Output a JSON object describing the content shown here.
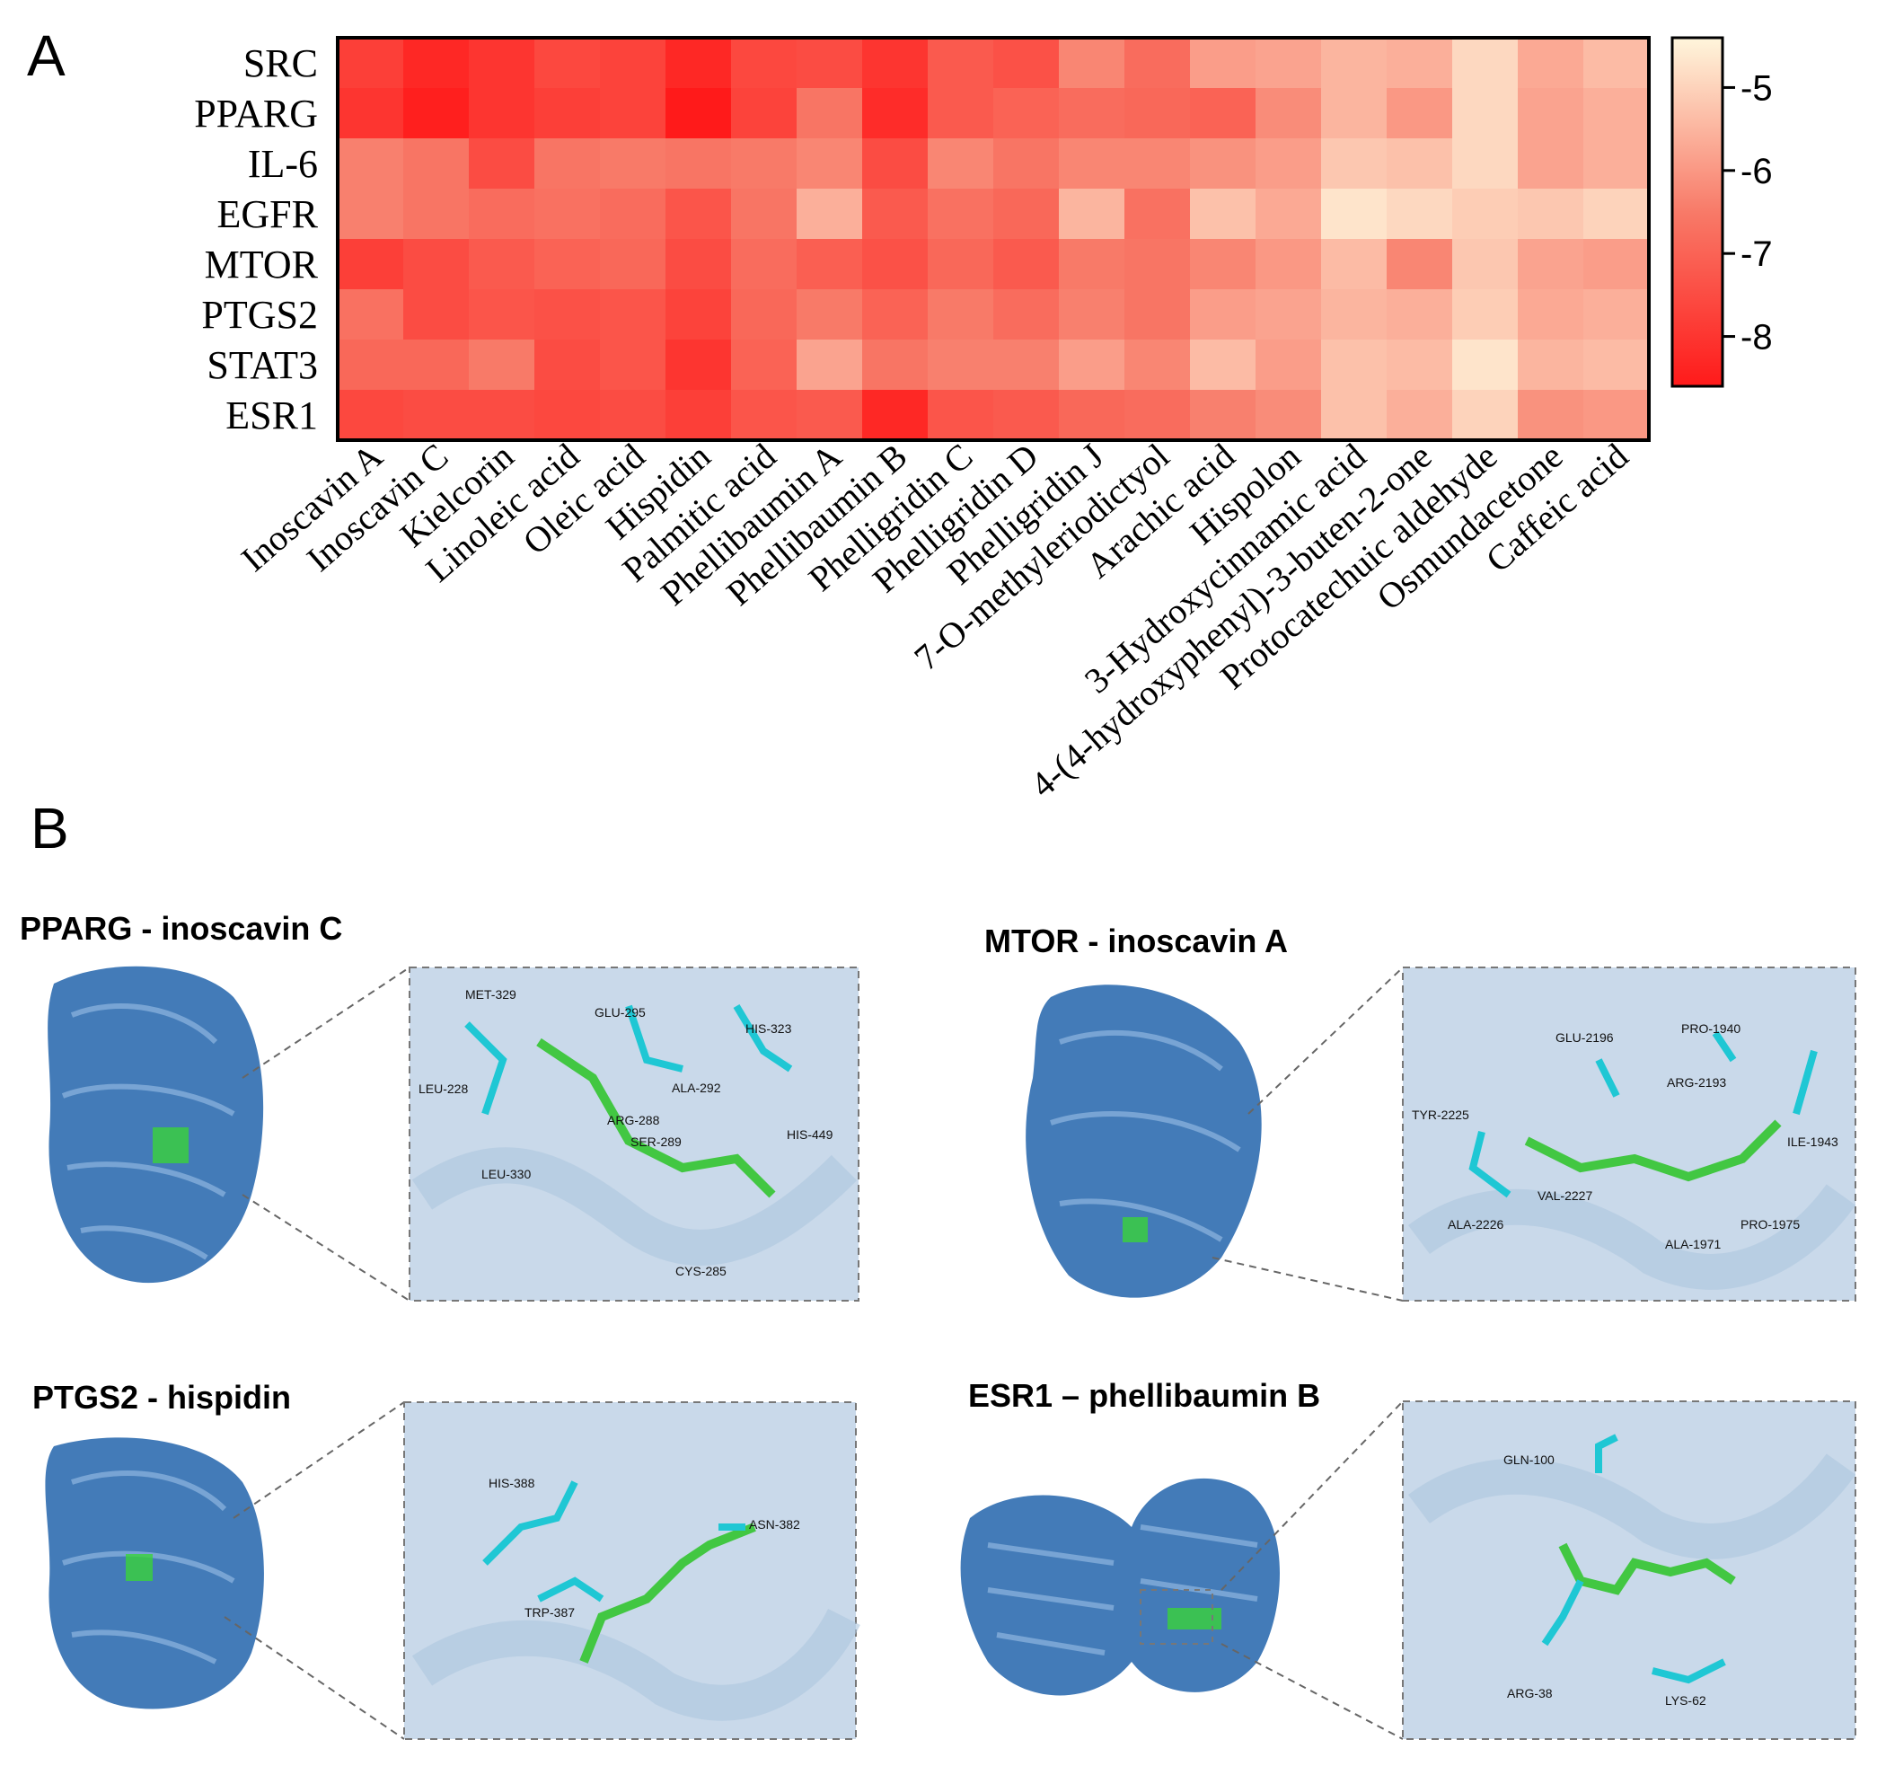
{
  "panels": {
    "a": "A",
    "b": "B"
  },
  "chart_data": {
    "type": "heatmap",
    "title": "",
    "rows": [
      "SRC",
      "PPARG",
      "IL-6",
      "EGFR",
      "MTOR",
      "PTGS2",
      "STAT3",
      "ESR1"
    ],
    "columns": [
      "Inoscavin A",
      "Inoscavin C",
      "Kielcorin",
      "Linoleic acid",
      "Oleic acid",
      "Hispidin",
      "Palmitic acid",
      "Phellibaumin A",
      "Phellibaumin B",
      "Phelligridin C",
      "Phelligridin D",
      "Phelligridin J",
      "7-O-methyleriodictyol",
      "Arachic acid",
      "Hispolon",
      "3-Hydroxycinnamic acid",
      "4-(4-hydroxyphenyl)-3-buten-2-one",
      "Protocatechuic aldehyde",
      "Osmundacetone",
      "Caffeic acid"
    ],
    "values": [
      [
        -7.8,
        -8.3,
        -8.0,
        -7.6,
        -7.7,
        -8.3,
        -7.6,
        -7.5,
        -8.0,
        -7.2,
        -7.4,
        -6.3,
        -6.8,
        -5.9,
        -5.8,
        -5.5,
        -5.6,
        -4.9,
        -5.7,
        -5.4
      ],
      [
        -8.0,
        -8.5,
        -8.0,
        -7.8,
        -7.7,
        -8.6,
        -7.7,
        -6.6,
        -8.2,
        -7.2,
        -7.0,
        -6.8,
        -6.9,
        -7.0,
        -6.2,
        -5.5,
        -6.0,
        -4.9,
        -5.8,
        -5.6
      ],
      [
        -6.4,
        -6.6,
        -7.5,
        -6.6,
        -6.5,
        -6.6,
        -6.5,
        -6.3,
        -7.5,
        -6.3,
        -6.6,
        -6.3,
        -6.3,
        -6.1,
        -5.9,
        -5.2,
        -5.3,
        -4.9,
        -5.8,
        -5.6
      ],
      [
        -6.4,
        -6.6,
        -6.8,
        -6.7,
        -6.8,
        -7.3,
        -6.6,
        -5.6,
        -7.2,
        -6.7,
        -6.9,
        -5.5,
        -6.7,
        -5.3,
        -5.7,
        -4.7,
        -4.9,
        -5.1,
        -5.2,
        -5.0
      ],
      [
        -7.8,
        -7.5,
        -7.2,
        -7.0,
        -6.9,
        -7.5,
        -6.8,
        -7.1,
        -7.4,
        -6.9,
        -7.2,
        -6.5,
        -6.6,
        -6.3,
        -6.0,
        -5.4,
        -6.3,
        -5.2,
        -5.8,
        -5.9
      ],
      [
        -6.7,
        -7.5,
        -7.3,
        -7.4,
        -7.3,
        -7.7,
        -6.9,
        -6.5,
        -7.0,
        -6.5,
        -6.8,
        -6.4,
        -6.6,
        -5.9,
        -5.8,
        -5.5,
        -5.6,
        -5.1,
        -5.7,
        -5.6
      ],
      [
        -6.9,
        -6.9,
        -6.5,
        -7.5,
        -7.3,
        -8.0,
        -7.0,
        -5.8,
        -6.6,
        -6.4,
        -6.4,
        -5.9,
        -6.3,
        -5.4,
        -5.9,
        -5.3,
        -5.4,
        -4.7,
        -5.5,
        -5.4
      ],
      [
        -7.6,
        -7.5,
        -7.5,
        -7.6,
        -7.5,
        -7.8,
        -7.3,
        -7.2,
        -8.3,
        -7.3,
        -7.2,
        -6.9,
        -6.8,
        -6.4,
        -6.2,
        -5.3,
        -5.6,
        -5.0,
        -6.1,
        -6.0
      ]
    ],
    "colorbar": {
      "ticks": [
        -5,
        -6,
        -7,
        -8
      ],
      "range": [
        -8.6,
        -4.4
      ],
      "low_color": "#ff1a1a",
      "high_color": "#fff6dc"
    }
  },
  "docking": [
    {
      "title": "PPARG  - inoscavin C",
      "residues": [
        "MET-329",
        "GLU-295",
        "HIS-323",
        "LEU-228",
        "ALA-292",
        "ARG-288",
        "SER-289",
        "HIS-449",
        "LEU-330",
        "CYS-285"
      ]
    },
    {
      "title": "MTOR - inoscavin A",
      "residues": [
        "GLU-2196",
        "PRO-1940",
        "ARG-2193",
        "TYR-2225",
        "ILE-1943",
        "VAL-2227",
        "ALA-2226",
        "PRO-1975",
        "ALA-1971"
      ]
    },
    {
      "title": "PTGS2 - hispidin",
      "residues": [
        "HIS-388",
        "ASN-382",
        "TRP-387"
      ]
    },
    {
      "title": "ESR1 – phellibaumin  B",
      "residues": [
        "GLN-100",
        "ARG-38",
        "LYS-62"
      ]
    }
  ]
}
